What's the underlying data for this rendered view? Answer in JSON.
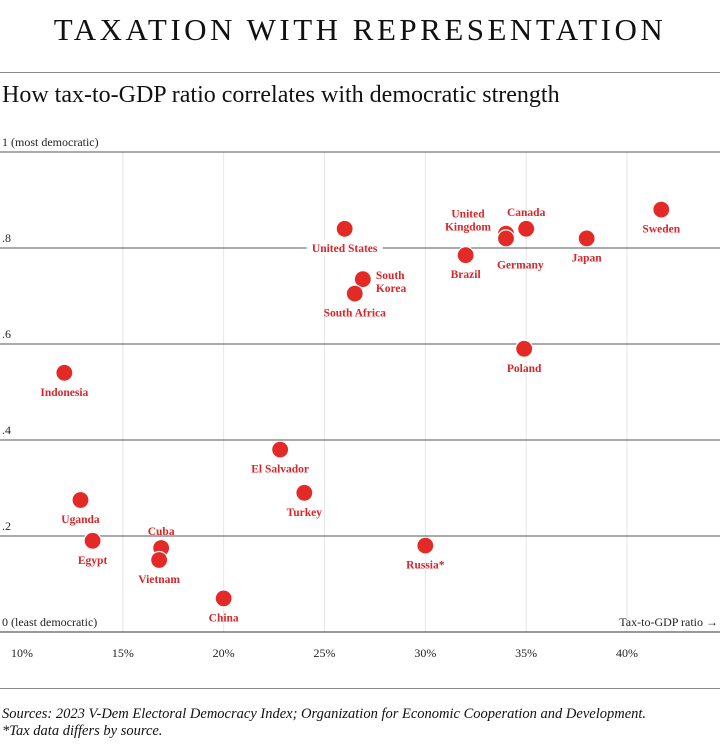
{
  "header": {
    "title": "TAXATION WITH REPRESENTATION",
    "subtitle": "How tax-to-GDP ratio correlates with democratic strength"
  },
  "footer": {
    "sources": "Sources: 2023 V-Dem Electoral Democracy Index; Organization for Economic Cooperation and Development.",
    "note": "*Tax data differs by source."
  },
  "colors": {
    "point": "#e32a26",
    "label": "#d8262a",
    "grid": "#555555",
    "minor_grid": "#e6e6e6"
  },
  "chart_data": {
    "type": "scatter",
    "xlabel": "Tax-to-GDP ratio →",
    "ylabel": "",
    "xlim": [
      10,
      44.5
    ],
    "ylim": [
      0,
      1
    ],
    "x_ticks": [
      {
        "value": 10,
        "label": "10%"
      },
      {
        "value": 15,
        "label": "15%"
      },
      {
        "value": 20,
        "label": "20%"
      },
      {
        "value": 25,
        "label": "25%"
      },
      {
        "value": 30,
        "label": "30%"
      },
      {
        "value": 35,
        "label": "35%"
      },
      {
        "value": 40,
        "label": "40%"
      }
    ],
    "y_ticks": [
      {
        "value": 0,
        "label": "0  (least democratic)"
      },
      {
        "value": 0.2,
        "label": ".2"
      },
      {
        "value": 0.4,
        "label": ".4"
      },
      {
        "value": 0.6,
        "label": ".6"
      },
      {
        "value": 0.8,
        "label": ".8"
      },
      {
        "value": 1,
        "label": "1  (most democratic)"
      }
    ],
    "points": [
      {
        "name": "Indonesia",
        "x": 12.1,
        "y": 0.54,
        "label_pos": "below"
      },
      {
        "name": "Uganda",
        "x": 12.9,
        "y": 0.275,
        "label_pos": "below"
      },
      {
        "name": "Egypt",
        "x": 13.5,
        "y": 0.19,
        "label_pos": "below"
      },
      {
        "name": "Cuba",
        "x": 16.9,
        "y": 0.175,
        "label_pos": "above"
      },
      {
        "name": "Vietnam",
        "x": 16.8,
        "y": 0.15,
        "label_pos": "below"
      },
      {
        "name": "China",
        "x": 20.0,
        "y": 0.07,
        "label_pos": "below"
      },
      {
        "name": "El Salvador",
        "x": 22.8,
        "y": 0.38,
        "label_pos": "below"
      },
      {
        "name": "Turkey",
        "x": 24.0,
        "y": 0.29,
        "label_pos": "below"
      },
      {
        "name": "Russia*",
        "x": 30.0,
        "y": 0.18,
        "label_pos": "below"
      },
      {
        "name": "United States",
        "x": 26.0,
        "y": 0.84,
        "label_pos": "below"
      },
      {
        "name": "South Korea",
        "x": 26.9,
        "y": 0.735,
        "label_pos": "right"
      },
      {
        "name": "South Africa",
        "x": 26.5,
        "y": 0.705,
        "label_pos": "below"
      },
      {
        "name": "Brazil",
        "x": 32.0,
        "y": 0.785,
        "label_pos": "below"
      },
      {
        "name": "United Kingdom",
        "x": 34.0,
        "y": 0.83,
        "label_pos": "left"
      },
      {
        "name": "Germany",
        "x": 34.0,
        "y": 0.82,
        "label_pos": "below-right"
      },
      {
        "name": "Canada",
        "x": 35.0,
        "y": 0.84,
        "label_pos": "above"
      },
      {
        "name": "Japan",
        "x": 38.0,
        "y": 0.82,
        "label_pos": "below"
      },
      {
        "name": "Sweden",
        "x": 41.7,
        "y": 0.88,
        "label_pos": "below"
      },
      {
        "name": "Poland",
        "x": 34.9,
        "y": 0.59,
        "label_pos": "below"
      }
    ]
  }
}
